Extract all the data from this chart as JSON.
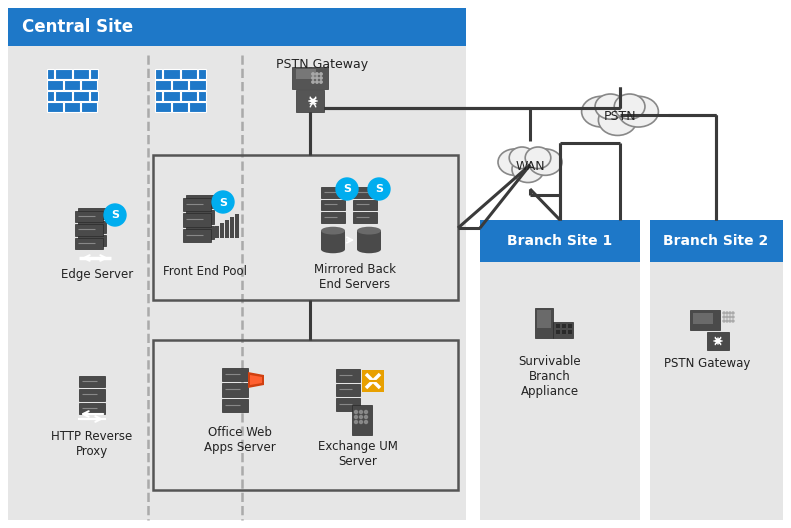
{
  "title": "Central Site",
  "title_bg": "#1e78c8",
  "title_text_color": "#ffffff",
  "bg_outer": "#ffffff",
  "bg_central": "#e6e6e6",
  "bg_branch": "#e6e6e6",
  "branch1_header_bg": "#1e78c8",
  "branch2_header_bg": "#1e78c8",
  "branch1_label": "Branch Site 1",
  "branch2_label": "Branch Site 2",
  "icon_color": "#4a4a4a",
  "icon_color2": "#555555",
  "skype_color": "#00adef",
  "line_color": "#3a3a3a",
  "dashed_color": "#aaaaaa",
  "firewall_color": "#1e78c8",
  "cloud_color": "#f0f0f0",
  "cloud_edge": "#888888",
  "labels": {
    "edge_server": "Edge Server",
    "front_end_pool": "Front End Pool",
    "mirrored_back": "Mirrored Back\nEnd Servers",
    "http_proxy": "HTTP Reverse\nProxy",
    "office_web": "Office Web\nApps Server",
    "exchange_um": "Exchange UM\nServer",
    "pstn_gateway": "PSTN Gateway",
    "wan": "WAN",
    "pstn": "PSTN",
    "survivable": "Survivable\nBranch\nAppliance",
    "pstn_gateway2": "PSTN Gateway"
  },
  "label_fontsize": 8.5,
  "title_fontsize": 12
}
